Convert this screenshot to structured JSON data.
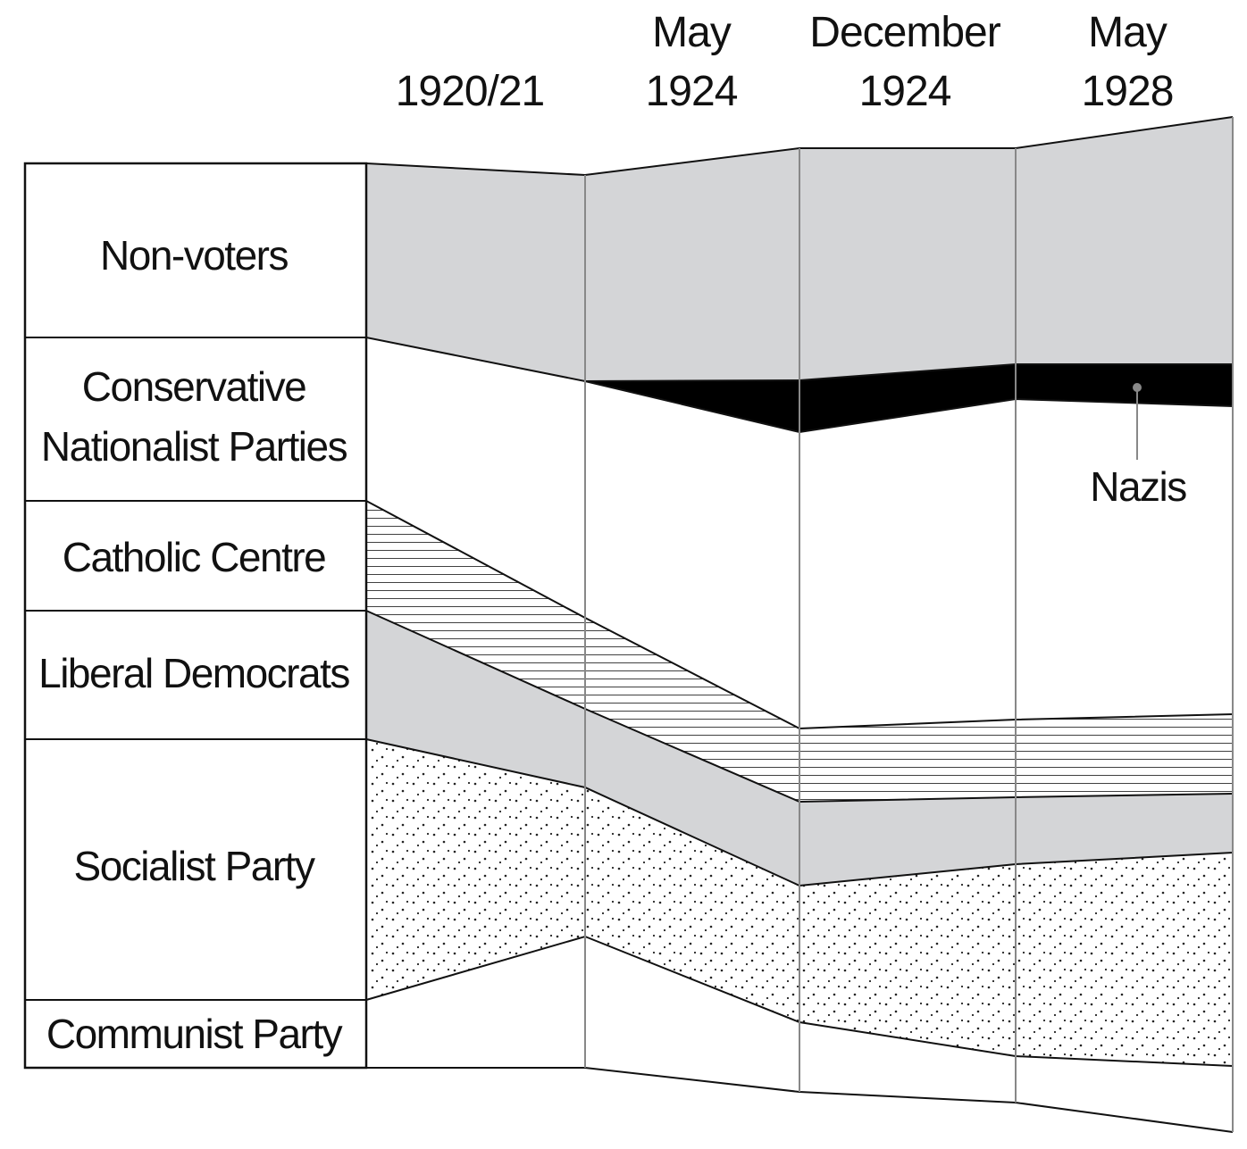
{
  "columns": [
    {
      "line1": "",
      "line2": "1920/21"
    },
    {
      "line1": "May",
      "line2": "1924"
    },
    {
      "line1": "December",
      "line2": "1924"
    },
    {
      "line1": "May",
      "line2": "1928"
    }
  ],
  "rows": [
    {
      "lines": [
        "Non-voters"
      ]
    },
    {
      "lines": [
        "Conservative",
        "Nationalist Parties"
      ]
    },
    {
      "lines": [
        "Catholic Centre"
      ]
    },
    {
      "lines": [
        "Liberal Democrats"
      ]
    },
    {
      "lines": [
        "Socialist Party"
      ]
    },
    {
      "lines": [
        "Communist Party"
      ]
    }
  ],
  "annotation": {
    "label": "Nazis"
  },
  "colors": {
    "line": "#111111",
    "divider": "#888888",
    "gray_fill": "#d4d5d7",
    "black_fill": "#000000",
    "white_fill": "#ffffff"
  }
}
